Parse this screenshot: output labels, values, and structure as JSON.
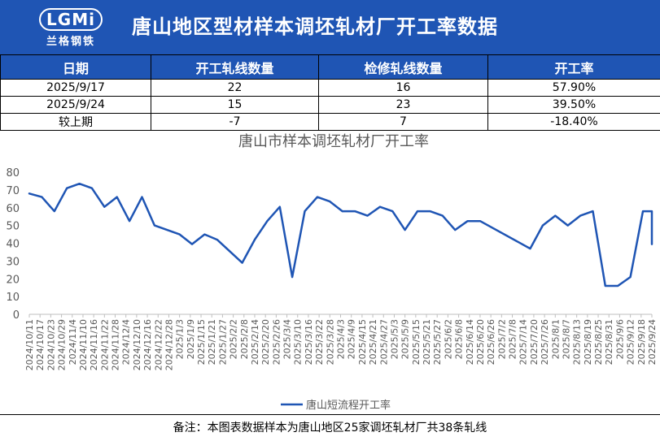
{
  "header": {
    "title": "唐山地区型材样本调坯轧材厂开工率数据",
    "logo_mark": "LGMi",
    "logo_text": "兰格钢铁",
    "background": "#1f55b4"
  },
  "table": {
    "headers": [
      "日期",
      "开工轧线数量",
      "检修轧线数量",
      "开工率"
    ],
    "rows": [
      [
        "2025/9/17",
        "22",
        "16",
        "57.90%"
      ],
      [
        "2025/9/24",
        "15",
        "23",
        "39.50%"
      ],
      [
        "较上期",
        "-7",
        "7",
        "-18.40%"
      ]
    ]
  },
  "chart_data": {
    "type": "line",
    "title": "唐山市样本调坯轧材厂开工率",
    "xlabel": "",
    "ylabel": "",
    "ylim": [
      0,
      80
    ],
    "yticks": [
      0,
      10,
      20,
      30,
      40,
      50,
      60,
      70,
      80
    ],
    "grid": false,
    "legend_position": "bottom",
    "line_color": "#1f55b4",
    "x_tick_labels": [
      "2024/10/11",
      "2024/10/17",
      "2024/10/23",
      "2024/10/29",
      "2024/11/4",
      "2024/11/10",
      "2024/11/16",
      "2024/11/22",
      "2024/11/28",
      "2024/12/4",
      "2024/12/10",
      "2024/12/16",
      "2024/12/22",
      "2024/12/28",
      "2025/1/3",
      "2025/1/9",
      "2025/1/15",
      "2025/1/21",
      "2025/1/27",
      "2025/2/2",
      "2025/2/8",
      "2025/2/14",
      "2025/2/20",
      "2025/2/26",
      "2025/3/4",
      "2025/3/10",
      "2025/3/16",
      "2025/3/22",
      "2025/3/28",
      "2025/4/3",
      "2025/4/9",
      "2025/4/15",
      "2025/4/21",
      "2025/4/27",
      "2025/5/3",
      "2025/5/9",
      "2025/5/15",
      "2025/5/21",
      "2025/5/27",
      "2025/6/2",
      "2025/6/8",
      "2025/6/14",
      "2025/6/20",
      "2025/6/26",
      "2025/7/2",
      "2025/7/8",
      "2025/7/14",
      "2025/7/20",
      "2025/7/26",
      "2025/8/1",
      "2025/8/7",
      "2025/8/13",
      "2025/8/19",
      "2025/8/25",
      "2025/8/31",
      "2025/9/6",
      "2025/9/12",
      "2025/9/18",
      "2025/9/24"
    ],
    "series": [
      {
        "name": "唐山短流程开工率",
        "points": [
          [
            "2024/10/11",
            68
          ],
          [
            "2024/10/18",
            66
          ],
          [
            "2024/10/25",
            58
          ],
          [
            "2024/11/1",
            71
          ],
          [
            "2024/11/8",
            73.5
          ],
          [
            "2024/11/15",
            71
          ],
          [
            "2024/11/22",
            60.5
          ],
          [
            "2024/11/29",
            66
          ],
          [
            "2024/12/6",
            52.5
          ],
          [
            "2024/12/13",
            66
          ],
          [
            "2024/12/20",
            50
          ],
          [
            "2025/1/3",
            45
          ],
          [
            "2025/1/10",
            39.5
          ],
          [
            "2025/1/17",
            45
          ],
          [
            "2025/1/24",
            42
          ],
          [
            "2025/2/7",
            29
          ],
          [
            "2025/2/14",
            42
          ],
          [
            "2025/2/21",
            52.5
          ],
          [
            "2025/2/28",
            60.5
          ],
          [
            "2025/3/7",
            21
          ],
          [
            "2025/3/14",
            58
          ],
          [
            "2025/3/21",
            66
          ],
          [
            "2025/3/28",
            63.5
          ],
          [
            "2025/4/4",
            58
          ],
          [
            "2025/4/11",
            58
          ],
          [
            "2025/4/18",
            55.5
          ],
          [
            "2025/4/25",
            60.5
          ],
          [
            "2025/5/2",
            58
          ],
          [
            "2025/5/9",
            47.5
          ],
          [
            "2025/5/16",
            58
          ],
          [
            "2025/5/23",
            58
          ],
          [
            "2025/5/30",
            55.5
          ],
          [
            "2025/6/6",
            47.5
          ],
          [
            "2025/6/13",
            52.5
          ],
          [
            "2025/6/20",
            52.5
          ],
          [
            "2025/7/18",
            37
          ],
          [
            "2025/7/25",
            50
          ],
          [
            "2025/8/1",
            55.5
          ],
          [
            "2025/8/8",
            50
          ],
          [
            "2025/8/15",
            55.5
          ],
          [
            "2025/8/22",
            58
          ],
          [
            "2025/8/29",
            16
          ],
          [
            "2025/9/5",
            16
          ],
          [
            "2025/9/12",
            21
          ],
          [
            "2025/9/19",
            58
          ],
          [
            "2025/9/26",
            58
          ],
          [
            "2025/10/3",
            39.5
          ]
        ]
      }
    ]
  },
  "footer": {
    "note": "备注：本图表数据样本为唐山地区25家调坯轧材厂共38条轧线"
  }
}
